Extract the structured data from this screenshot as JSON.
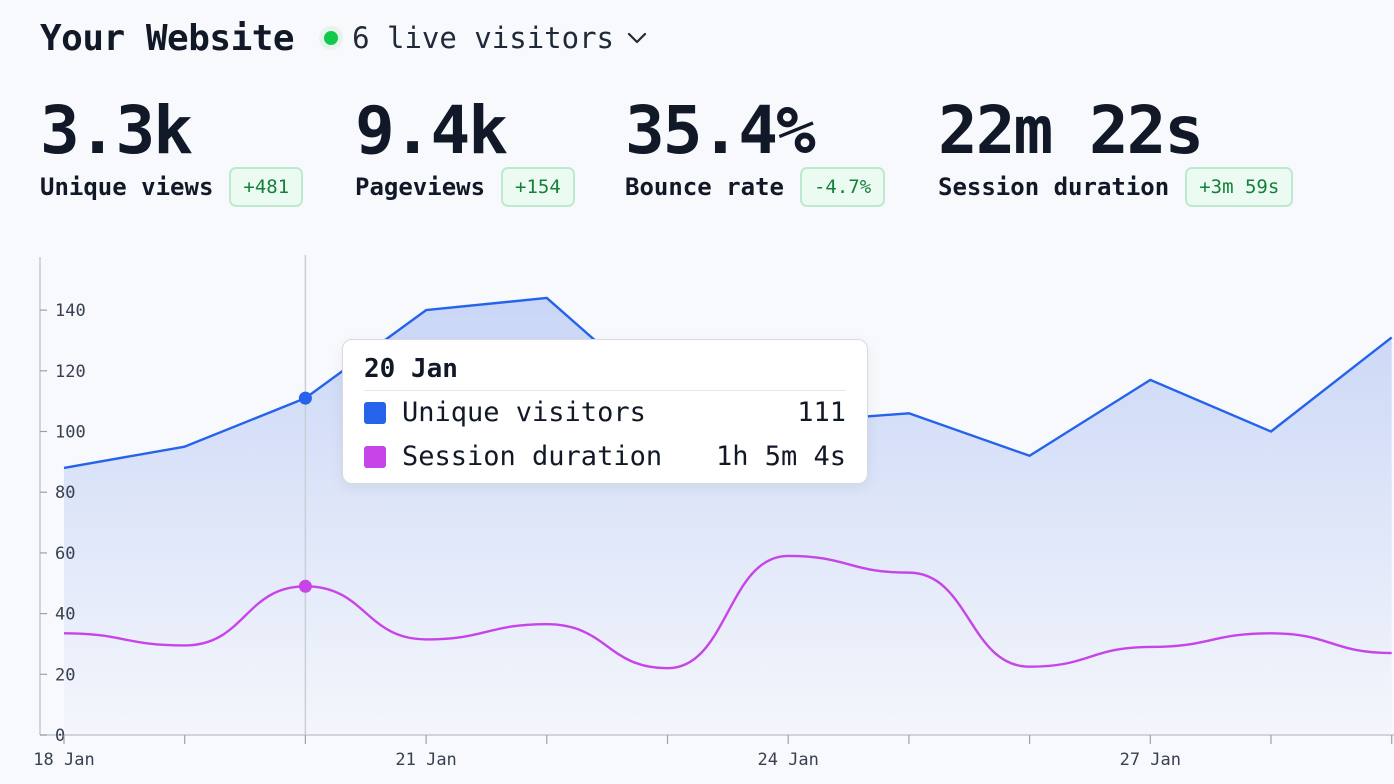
{
  "header": {
    "title": "Your Website",
    "live_visitors": "6 live visitors"
  },
  "metrics": [
    {
      "value": "3.3k",
      "label": "Unique views",
      "change": "+481"
    },
    {
      "value": "9.4k",
      "label": "Pageviews",
      "change": "+154"
    },
    {
      "value": "35.4%",
      "label": "Bounce rate",
      "change": "-4.7%"
    },
    {
      "value": "22m 22s",
      "label": "Session duration",
      "change": "+3m 59s"
    }
  ],
  "colors": {
    "unique_visitors": "#2563eb",
    "session_duration": "#c644e8",
    "live": "#10c94a",
    "badge_text": "#14803c"
  },
  "icons": {
    "live_indicator": "green-dot-icon",
    "dropdown": "chevron-down-icon"
  },
  "tooltip": {
    "date": "20 Jan",
    "rows": [
      {
        "label": "Unique visitors",
        "value": "111"
      },
      {
        "label": "Session duration",
        "value": "1h 5m 4s"
      }
    ]
  },
  "chart_data": {
    "type": "area",
    "x": [
      "18 Jan",
      "19 Jan",
      "20 Jan",
      "21 Jan",
      "22 Jan",
      "23 Jan",
      "24 Jan",
      "25 Jan",
      "26 Jan",
      "27 Jan",
      "28 Jan",
      "29 Jan"
    ],
    "x_tick_labels": [
      "18 Jan",
      "21 Jan",
      "24 Jan",
      "27 Jan"
    ],
    "y_tick_labels": [
      "0",
      "20",
      "40",
      "60",
      "80",
      "100",
      "120",
      "140"
    ],
    "ylim": [
      0,
      160
    ],
    "grid": false,
    "series": [
      {
        "name": "Unique visitors",
        "style": "area-linear",
        "values": [
          88,
          95,
          111,
          140,
          144,
          109,
          103,
          106,
          92,
          117,
          100,
          131
        ]
      },
      {
        "name": "Session duration",
        "style": "line-smooth",
        "values": [
          33.5,
          29.5,
          49,
          31.5,
          36.5,
          22,
          59,
          53.5,
          22.5,
          29,
          33.5,
          27
        ]
      }
    ],
    "highlight_index": 2
  }
}
